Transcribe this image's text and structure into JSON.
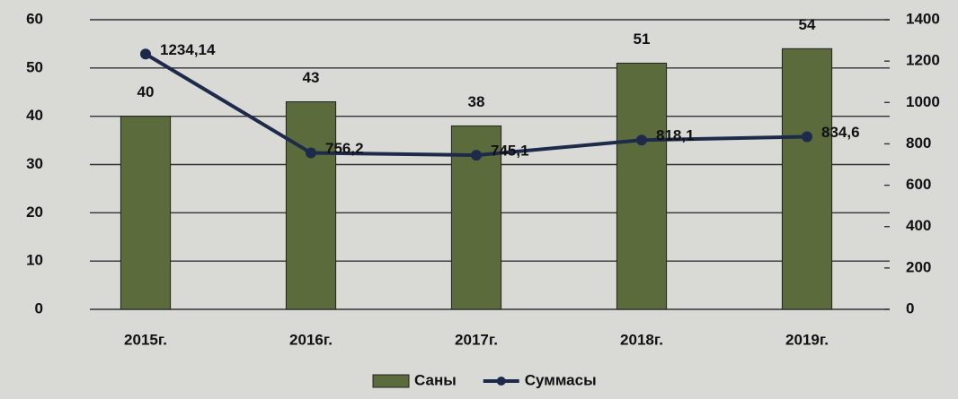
{
  "chart_data": {
    "type": "bar",
    "categories": [
      "2015г.",
      "2016г.",
      "2017г.",
      "2018г.",
      "2019г."
    ],
    "series": [
      {
        "name": "Саны",
        "type": "bar",
        "color": "#5b6b3c",
        "values": [
          40,
          43,
          38,
          51,
          54
        ]
      },
      {
        "name": "Суммасы",
        "type": "line",
        "axis": "y2",
        "color": "#1e2a4a",
        "values": [
          1234.14,
          756.2,
          745.1,
          818.1,
          834.6
        ],
        "value_labels": [
          "1234,14",
          "756,2",
          "745,1",
          "818,1",
          "834,6"
        ]
      }
    ],
    "ylim": [
      0,
      60
    ],
    "yticks": [
      0,
      10,
      20,
      30,
      40,
      50,
      60
    ],
    "y2lim": [
      0,
      1400
    ],
    "y2ticks": [
      0,
      200,
      400,
      600,
      800,
      1000,
      1200,
      1400
    ],
    "grid": true,
    "legend": "bottom"
  }
}
